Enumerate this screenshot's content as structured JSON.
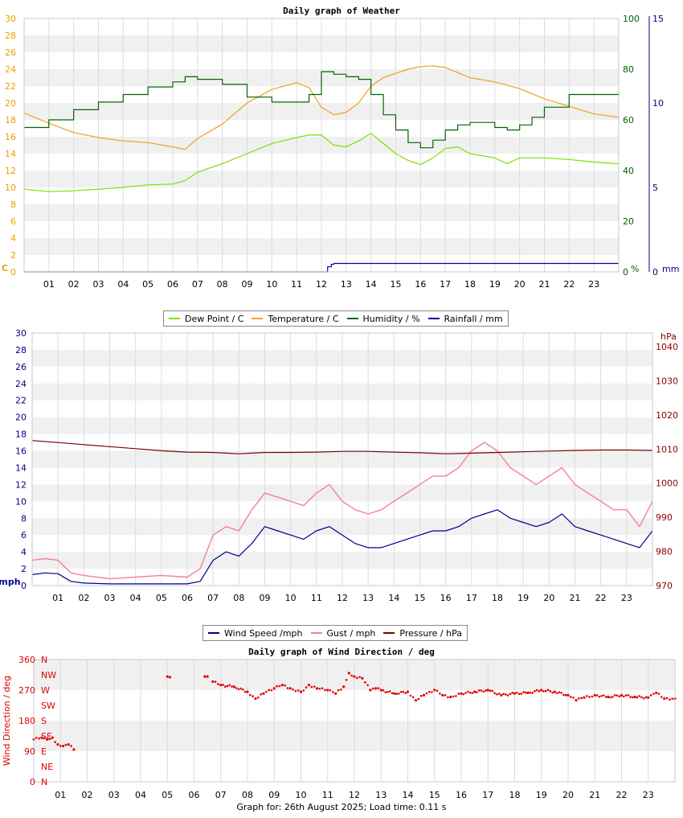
{
  "chart_data": [
    {
      "type": "line",
      "title": "Daily graph of Weather",
      "x_ticks": [
        "01",
        "02",
        "03",
        "04",
        "05",
        "06",
        "07",
        "08",
        "09",
        "10",
        "11",
        "12",
        "13",
        "14",
        "15",
        "16",
        "17",
        "18",
        "19",
        "20",
        "21",
        "22",
        "23"
      ],
      "xlim": [
        0,
        24
      ],
      "y_left": {
        "unit": "C",
        "lim": [
          0,
          30
        ],
        "ticks": [
          "0",
          "2",
          "4",
          "6",
          "8",
          "10",
          "12",
          "14",
          "16",
          "18",
          "20",
          "22",
          "24",
          "26",
          "28",
          "30"
        ],
        "color": "#e8a000"
      },
      "y_right1": {
        "unit": "%",
        "lim": [
          0,
          100
        ],
        "ticks": [
          "0",
          "20",
          "40",
          "60",
          "80",
          "100"
        ],
        "color": "#006400"
      },
      "y_right2": {
        "unit": "mm",
        "lim": [
          0,
          15
        ],
        "ticks": [
          "0",
          "5",
          "10",
          "15"
        ],
        "color": "#00008b"
      },
      "grid": true,
      "legend": "bottom",
      "series": [
        {
          "name": "Dew Point / C",
          "color": "#7fe000",
          "axis": "left",
          "x": [
            0,
            1,
            2,
            3,
            4,
            5,
            6,
            6.5,
            7,
            8,
            9,
            10,
            11,
            11.5,
            12,
            12.5,
            13,
            13.5,
            14,
            14.5,
            15,
            15.5,
            16,
            16.5,
            17,
            17.5,
            18,
            19,
            19.5,
            20,
            21,
            22,
            23,
            24
          ],
          "y": [
            9.8,
            9.5,
            9.6,
            9.8,
            10,
            10.3,
            10.4,
            10.8,
            11.8,
            12.8,
            14,
            15.2,
            15.9,
            16.2,
            16.2,
            15,
            14.8,
            15.5,
            16.4,
            15.2,
            14,
            13.2,
            12.7,
            13.5,
            14.6,
            14.8,
            14,
            13.5,
            12.8,
            13.5,
            13.5,
            13.3,
            13,
            12.8
          ]
        },
        {
          "name": "Temperature / C",
          "color": "#f0a020",
          "axis": "left",
          "x": [
            0,
            1,
            2,
            3,
            4,
            5,
            6,
            6.5,
            7,
            8,
            9,
            10,
            11,
            11.5,
            12,
            12.5,
            13,
            13.5,
            14,
            14.5,
            15,
            15.5,
            16,
            16.5,
            17,
            17.5,
            18,
            19,
            20,
            21,
            22,
            23,
            24
          ],
          "y": [
            18.8,
            17.6,
            16.5,
            15.9,
            15.5,
            15.3,
            14.8,
            14.5,
            15.8,
            17.5,
            20,
            21.6,
            22.4,
            21.8,
            19.5,
            18.6,
            18.9,
            20,
            22,
            23,
            23.5,
            24,
            24.3,
            24.4,
            24.2,
            23.6,
            23,
            22.5,
            21.7,
            20.5,
            19.6,
            18.7,
            18.3
          ]
        },
        {
          "name": "Humidity / %",
          "color": "#006400",
          "axis": "right1",
          "x": [
            0,
            1,
            2,
            3,
            4,
            5,
            6,
            6.5,
            7,
            8,
            9,
            10,
            11,
            11.5,
            12,
            12.5,
            13,
            13.5,
            14,
            14.5,
            15,
            15.5,
            16,
            16.5,
            17,
            17.5,
            18,
            19,
            19.5,
            20,
            20.5,
            21,
            22,
            23,
            23.5,
            24
          ],
          "y": [
            57,
            60,
            64,
            67,
            70,
            73,
            75,
            77,
            76,
            74,
            69,
            67,
            67,
            70,
            79,
            78,
            77,
            76,
            70,
            62,
            56,
            51,
            49,
            52,
            56,
            58,
            59,
            57,
            56,
            58,
            61,
            65,
            70,
            70,
            70,
            71
          ]
        },
        {
          "name": "Rainfall / mm",
          "color": "#0000aa",
          "axis": "right2",
          "x": [
            0,
            12,
            12.25,
            12.4,
            12.5,
            24
          ],
          "y": [
            0,
            0,
            0.3,
            0.45,
            0.5,
            0.5
          ]
        }
      ]
    },
    {
      "type": "line",
      "title": "",
      "x_ticks": [
        "01",
        "02",
        "03",
        "04",
        "05",
        "06",
        "07",
        "08",
        "09",
        "10",
        "11",
        "12",
        "13",
        "14",
        "15",
        "16",
        "17",
        "18",
        "19",
        "20",
        "21",
        "22",
        "23"
      ],
      "xlim": [
        0,
        24
      ],
      "y_left": {
        "unit": "mph",
        "lim": [
          0,
          30
        ],
        "ticks": [
          "0",
          "2",
          "4",
          "6",
          "8",
          "10",
          "12",
          "14",
          "16",
          "18",
          "20",
          "22",
          "24",
          "26",
          "28",
          "30"
        ],
        "color": "#00008b"
      },
      "y_right": {
        "unit": "hPa",
        "lim": [
          970,
          1044
        ],
        "ticks": [
          "970",
          "980",
          "990",
          "1000",
          "1010",
          "1020",
          "1030",
          "1040"
        ],
        "color": "#8b0000"
      },
      "grid": true,
      "legend": "bottom",
      "series": [
        {
          "name": "Wind Speed /mph",
          "color": "#00008b",
          "axis": "left",
          "x": [
            0,
            0.5,
            1,
            1.5,
            2,
            3,
            4,
            5,
            6,
            6.5,
            7,
            7.5,
            8,
            8.5,
            9,
            9.5,
            10,
            10.5,
            11,
            11.5,
            12,
            12.5,
            13,
            13.5,
            14,
            14.5,
            15,
            15.5,
            16,
            16.5,
            17,
            17.5,
            18,
            18.5,
            19,
            19.5,
            20,
            20.5,
            21,
            21.5,
            22,
            22.5,
            23,
            23.5,
            24
          ],
          "y": [
            1.3,
            1.5,
            1.4,
            0.5,
            0.3,
            0.2,
            0.2,
            0.2,
            0.2,
            0.5,
            3,
            4,
            3.5,
            5,
            7,
            6.5,
            6,
            5.5,
            6.5,
            7,
            6,
            5,
            4.5,
            4.5,
            5,
            5.5,
            6,
            6.5,
            6.5,
            7,
            8,
            8.5,
            9,
            8,
            7.5,
            7,
            7.5,
            8.5,
            7,
            6.5,
            6,
            5.5,
            5,
            4.5,
            6.5
          ]
        },
        {
          "name": "Gust / mph",
          "color": "#f080a0",
          "axis": "left",
          "x": [
            0,
            0.5,
            1,
            1.5,
            2,
            3,
            4,
            5,
            6,
            6.5,
            7,
            7.5,
            8,
            8.5,
            9,
            9.5,
            10,
            10.5,
            11,
            11.5,
            12,
            12.5,
            13,
            13.5,
            14,
            14.5,
            15,
            15.5,
            16,
            16.5,
            17,
            17.5,
            18,
            18.5,
            19,
            19.5,
            20,
            20.5,
            21,
            21.5,
            22,
            22.5,
            23,
            23.5,
            24
          ],
          "y": [
            3,
            3.2,
            3,
            1.5,
            1.2,
            0.8,
            1,
            1.2,
            1,
            2,
            6,
            7,
            6.5,
            9,
            11,
            10.5,
            10,
            9.5,
            11,
            12,
            10,
            9,
            8.5,
            9,
            10,
            11,
            12,
            13,
            13,
            14,
            16,
            17,
            16,
            14,
            13,
            12,
            13,
            14,
            12,
            11,
            10,
            9,
            9,
            7,
            10
          ]
        },
        {
          "name": "Pressure / hPa",
          "color": "#7b0000",
          "axis": "right",
          "x": [
            0,
            1,
            2,
            3,
            4,
            5,
            6,
            7,
            8,
            9,
            10,
            11,
            12,
            13,
            14,
            15,
            16,
            17,
            18,
            19,
            20,
            21,
            22,
            23,
            24
          ],
          "y": [
            1012.5,
            1011.9,
            1011.3,
            1010.7,
            1010.1,
            1009.5,
            1009.1,
            1009,
            1008.6,
            1009,
            1009,
            1009.1,
            1009.3,
            1009.3,
            1009.1,
            1008.9,
            1008.6,
            1008.8,
            1009,
            1009.2,
            1009.4,
            1009.6,
            1009.7,
            1009.7,
            1009.6
          ]
        }
      ]
    },
    {
      "type": "scatter",
      "title": "Daily graph of Wind Direction / deg",
      "ylabel": "Wind Direction / deg",
      "x_ticks": [
        "01",
        "02",
        "03",
        "04",
        "05",
        "06",
        "07",
        "08",
        "09",
        "10",
        "11",
        "12",
        "13",
        "14",
        "15",
        "16",
        "17",
        "18",
        "19",
        "20",
        "21",
        "22",
        "23"
      ],
      "xlim": [
        0,
        24
      ],
      "ylim": [
        0,
        360
      ],
      "y_ticks": [
        "0",
        "90",
        "180",
        "270",
        "360"
      ],
      "compass": [
        "N",
        "NE",
        "E",
        "SE",
        "S",
        "SW",
        "W",
        "NW",
        "N"
      ],
      "grid": true,
      "color": "#e00000",
      "segments": [
        {
          "x": [
            0,
            0.3,
            0.5,
            0.7,
            0.9,
            1.1,
            1.3,
            1.5
          ],
          "y": [
            125,
            130,
            125,
            130,
            110,
            105,
            110,
            95
          ]
        },
        {
          "x": [
            5,
            5.1
          ],
          "y": [
            310,
            308
          ]
        },
        {
          "x": [
            6.4,
            6.5
          ],
          "y": [
            310,
            310
          ]
        },
        {
          "x": [
            6.7,
            7,
            7.5,
            8,
            8.3,
            8.6,
            9,
            9.3,
            9.6,
            10,
            10.3,
            10.6,
            11,
            11.3,
            11.6,
            11.8,
            12,
            12.3,
            12.6,
            12.8,
            13,
            13.5,
            14,
            14.3,
            14.6,
            15,
            15.3,
            15.6,
            16,
            16.5,
            17,
            17.5,
            18,
            18.5,
            19,
            19.5,
            20,
            20.3,
            20.6,
            21,
            21.5,
            22,
            22.5,
            23,
            23.3,
            23.6,
            24
          ],
          "y": [
            295,
            285,
            280,
            265,
            245,
            260,
            275,
            285,
            275,
            265,
            285,
            275,
            270,
            260,
            280,
            320,
            310,
            305,
            270,
            275,
            270,
            260,
            265,
            240,
            255,
            270,
            255,
            250,
            260,
            265,
            270,
            255,
            260,
            262,
            270,
            265,
            255,
            240,
            248,
            255,
            250,
            255,
            250,
            248,
            262,
            245,
            245
          ]
        }
      ]
    }
  ],
  "legend1": [
    {
      "label": "Dew Point / C",
      "color": "#7fe000"
    },
    {
      "label": "Temperature / C",
      "color": "#f0a020"
    },
    {
      "label": "Humidity / %",
      "color": "#006400"
    },
    {
      "label": "Rainfall / mm",
      "color": "#0000aa"
    }
  ],
  "legend2": [
    {
      "label": "Wind Speed /mph",
      "color": "#00008b"
    },
    {
      "label": "Gust / mph",
      "color": "#f080a0"
    },
    {
      "label": "Pressure / hPa",
      "color": "#7b0000"
    }
  ],
  "footer": "Graph for: 26th August 2025; Load time: 0.11 s"
}
